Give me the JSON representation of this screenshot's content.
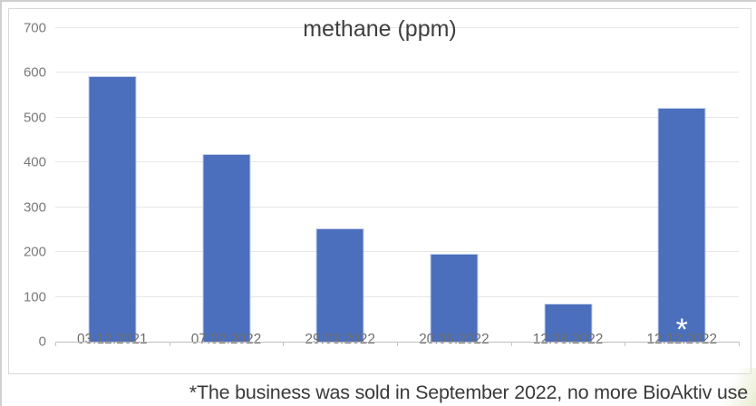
{
  "title": "methane (ppm)",
  "footnote": "*The business was sold in September 2022, no more BioAktiv use",
  "annotation": {
    "bar_index": 5,
    "symbol": "*"
  },
  "colors": {
    "bar": "#4b6fbc",
    "bar_edge": "#adbee4",
    "gridline": "#e7e7e7",
    "axis_line": "#bdbdbd",
    "ytick_label": "#7a7a7a",
    "xtick_label": "#6e6e6e",
    "title_text": "#3f3f3f",
    "footnote_text": "#3a3a3a",
    "chart_border": "#d9d9d9",
    "annotation_text": "#ffffff"
  },
  "chart_data": {
    "type": "bar",
    "title": "methane (ppm)",
    "categories": [
      "03.12.2021",
      "07.02.2022",
      "29.03.2022",
      "20.06.2022",
      "12.08.2022",
      "12.12.2022"
    ],
    "values": [
      590,
      417,
      250,
      195,
      82,
      520
    ],
    "xlabel": "",
    "ylabel": "",
    "ylim": [
      0,
      700
    ],
    "yticks": [
      0,
      100,
      200,
      300,
      400,
      500,
      600,
      700
    ],
    "grid": true,
    "legend": false,
    "bar_annotations": [
      "",
      "",
      "",
      "",
      "",
      "*"
    ]
  }
}
